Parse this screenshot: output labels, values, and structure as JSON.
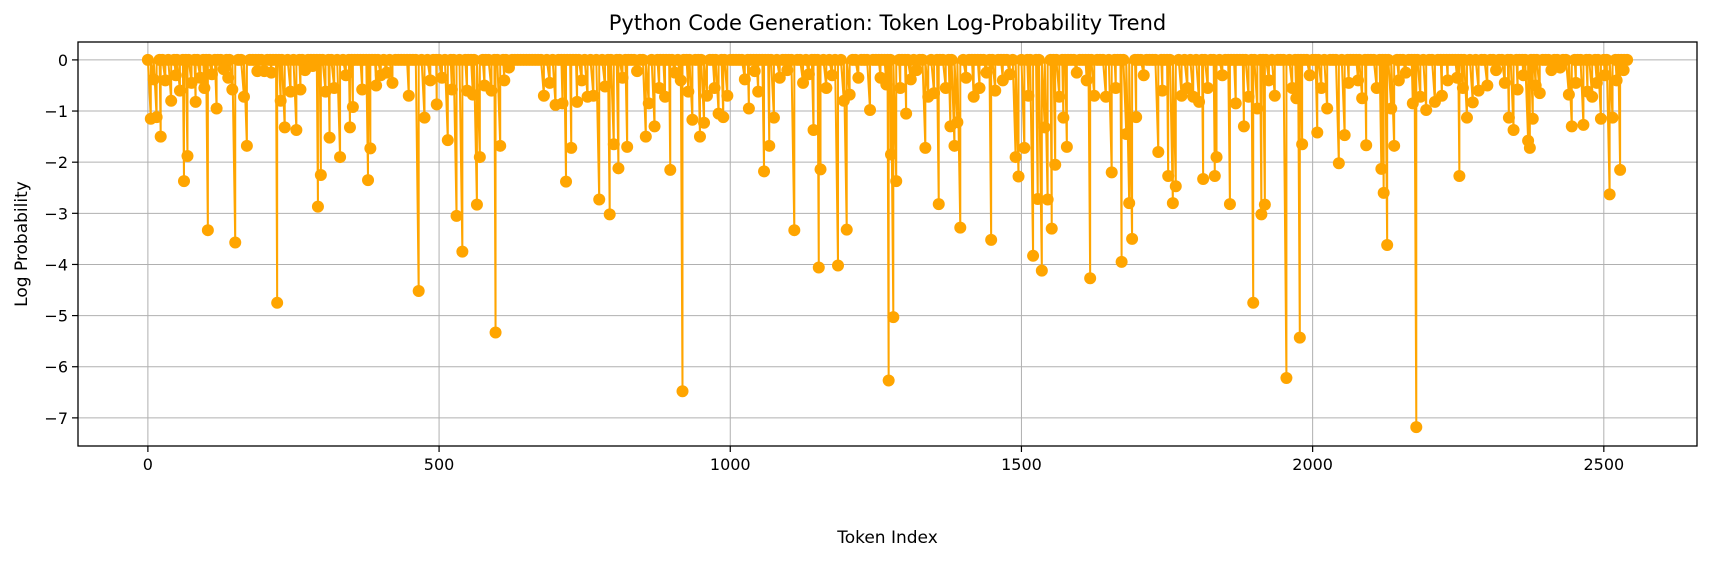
{
  "chart_data": {
    "type": "line",
    "title": "Python Code Generation: Token Log-Probability Trend",
    "xlabel": "Token Index",
    "ylabel": "Log Probability",
    "xlim": [
      -120,
      2660
    ],
    "ylim": [
      -7.55,
      0.35
    ],
    "xticks": [
      0,
      500,
      1000,
      1500,
      2000,
      2500
    ],
    "yticks": [
      0,
      -1,
      -2,
      -3,
      -4,
      -5,
      -6,
      -7
    ],
    "grid": true,
    "color": "#FFA500",
    "marker": "circle",
    "n_tokens": 2540,
    "baseline": 0,
    "dips": [
      [
        5,
        -1.15
      ],
      [
        10,
        -0.38
      ],
      [
        15,
        -1.12
      ],
      [
        22,
        -1.5
      ],
      [
        30,
        -0.4
      ],
      [
        40,
        -0.8
      ],
      [
        48,
        -0.3
      ],
      [
        55,
        -0.6
      ],
      [
        62,
        -2.37
      ],
      [
        68,
        -1.88
      ],
      [
        75,
        -0.45
      ],
      [
        82,
        -0.82
      ],
      [
        90,
        -0.35
      ],
      [
        97,
        -0.55
      ],
      [
        103,
        -3.33
      ],
      [
        110,
        -0.28
      ],
      [
        118,
        -0.95
      ],
      [
        130,
        -0.18
      ],
      [
        138,
        -0.35
      ],
      [
        145,
        -0.58
      ],
      [
        150,
        -3.57
      ],
      [
        165,
        -0.72
      ],
      [
        170,
        -1.68
      ],
      [
        188,
        -0.22
      ],
      [
        200,
        -0.22
      ],
      [
        212,
        -0.25
      ],
      [
        222,
        -4.75
      ],
      [
        228,
        -0.8
      ],
      [
        235,
        -1.32
      ],
      [
        245,
        -0.62
      ],
      [
        255,
        -1.37
      ],
      [
        262,
        -0.58
      ],
      [
        270,
        -0.2
      ],
      [
        283,
        -0.12
      ],
      [
        292,
        -2.87
      ],
      [
        297,
        -2.25
      ],
      [
        305,
        -0.62
      ],
      [
        312,
        -1.52
      ],
      [
        320,
        -0.55
      ],
      [
        330,
        -1.9
      ],
      [
        340,
        -0.3
      ],
      [
        347,
        -1.32
      ],
      [
        352,
        -0.92
      ],
      [
        368,
        -0.58
      ],
      [
        378,
        -2.35
      ],
      [
        382,
        -1.73
      ],
      [
        392,
        -0.5
      ],
      [
        400,
        -0.3
      ],
      [
        410,
        -0.25
      ],
      [
        420,
        -0.45
      ],
      [
        448,
        -0.7
      ],
      [
        465,
        -4.52
      ],
      [
        475,
        -1.13
      ],
      [
        485,
        -0.4
      ],
      [
        496,
        -0.87
      ],
      [
        505,
        -0.35
      ],
      [
        515,
        -1.57
      ],
      [
        522,
        -0.58
      ],
      [
        530,
        -3.05
      ],
      [
        540,
        -3.75
      ],
      [
        548,
        -0.6
      ],
      [
        558,
        -0.68
      ],
      [
        565,
        -2.83
      ],
      [
        570,
        -1.9
      ],
      [
        578,
        -0.5
      ],
      [
        590,
        -0.6
      ],
      [
        597,
        -5.33
      ],
      [
        605,
        -1.68
      ],
      [
        612,
        -0.4
      ],
      [
        620,
        -0.15
      ],
      [
        680,
        -0.7
      ],
      [
        690,
        -0.45
      ],
      [
        700,
        -0.88
      ],
      [
        712,
        -0.85
      ],
      [
        718,
        -2.38
      ],
      [
        727,
        -1.72
      ],
      [
        737,
        -0.82
      ],
      [
        745,
        -0.4
      ],
      [
        755,
        -0.72
      ],
      [
        765,
        -0.7
      ],
      [
        775,
        -2.73
      ],
      [
        785,
        -0.52
      ],
      [
        793,
        -3.02
      ],
      [
        800,
        -1.65
      ],
      [
        808,
        -2.12
      ],
      [
        815,
        -0.35
      ],
      [
        823,
        -1.7
      ],
      [
        840,
        -0.22
      ],
      [
        855,
        -1.5
      ],
      [
        860,
        -0.85
      ],
      [
        870,
        -1.3
      ],
      [
        878,
        -0.55
      ],
      [
        888,
        -0.72
      ],
      [
        897,
        -2.15
      ],
      [
        905,
        -0.25
      ],
      [
        915,
        -0.4
      ],
      [
        918,
        -6.48
      ],
      [
        928,
        -0.62
      ],
      [
        935,
        -1.17
      ],
      [
        948,
        -1.5
      ],
      [
        955,
        -1.23
      ],
      [
        960,
        -0.7
      ],
      [
        973,
        -0.55
      ],
      [
        980,
        -1.05
      ],
      [
        988,
        -1.12
      ],
      [
        995,
        -0.7
      ],
      [
        1025,
        -0.38
      ],
      [
        1032,
        -0.95
      ],
      [
        1042,
        -0.22
      ],
      [
        1048,
        -0.62
      ],
      [
        1058,
        -2.18
      ],
      [
        1067,
        -1.68
      ],
      [
        1075,
        -1.13
      ],
      [
        1085,
        -0.35
      ],
      [
        1098,
        -0.2
      ],
      [
        1110,
        -3.33
      ],
      [
        1125,
        -0.45
      ],
      [
        1135,
        -0.28
      ],
      [
        1143,
        -1.37
      ],
      [
        1152,
        -4.06
      ],
      [
        1155,
        -2.14
      ],
      [
        1165,
        -0.55
      ],
      [
        1175,
        -0.3
      ],
      [
        1185,
        -4.02
      ],
      [
        1195,
        -0.8
      ],
      [
        1200,
        -3.32
      ],
      [
        1205,
        -0.68
      ],
      [
        1220,
        -0.35
      ],
      [
        1240,
        -0.98
      ],
      [
        1258,
        -0.35
      ],
      [
        1268,
        -0.48
      ],
      [
        1272,
        -6.27
      ],
      [
        1276,
        -1.85
      ],
      [
        1280,
        -5.03
      ],
      [
        1285,
        -2.37
      ],
      [
        1292,
        -0.55
      ],
      [
        1302,
        -1.05
      ],
      [
        1310,
        -0.38
      ],
      [
        1320,
        -0.2
      ],
      [
        1335,
        -1.72
      ],
      [
        1340,
        -0.72
      ],
      [
        1350,
        -0.65
      ],
      [
        1358,
        -2.82
      ],
      [
        1370,
        -0.55
      ],
      [
        1378,
        -1.3
      ],
      [
        1385,
        -1.68
      ],
      [
        1390,
        -1.22
      ],
      [
        1395,
        -3.28
      ],
      [
        1405,
        -0.35
      ],
      [
        1418,
        -0.72
      ],
      [
        1428,
        -0.55
      ],
      [
        1440,
        -0.25
      ],
      [
        1448,
        -3.52
      ],
      [
        1455,
        -0.6
      ],
      [
        1468,
        -0.4
      ],
      [
        1480,
        -0.28
      ],
      [
        1490,
        -1.9
      ],
      [
        1495,
        -2.28
      ],
      [
        1505,
        -1.72
      ],
      [
        1512,
        -0.7
      ],
      [
        1520,
        -3.83
      ],
      [
        1528,
        -2.72
      ],
      [
        1535,
        -4.12
      ],
      [
        1540,
        -1.32
      ],
      [
        1545,
        -2.73
      ],
      [
        1552,
        -3.3
      ],
      [
        1558,
        -2.05
      ],
      [
        1565,
        -0.72
      ],
      [
        1572,
        -1.13
      ],
      [
        1578,
        -1.7
      ],
      [
        1595,
        -0.25
      ],
      [
        1612,
        -0.4
      ],
      [
        1618,
        -4.27
      ],
      [
        1625,
        -0.7
      ],
      [
        1645,
        -0.72
      ],
      [
        1655,
        -2.2
      ],
      [
        1662,
        -0.55
      ],
      [
        1672,
        -3.95
      ],
      [
        1680,
        -1.45
      ],
      [
        1685,
        -2.8
      ],
      [
        1690,
        -3.5
      ],
      [
        1697,
        -1.12
      ],
      [
        1710,
        -0.3
      ],
      [
        1735,
        -1.8
      ],
      [
        1742,
        -0.6
      ],
      [
        1752,
        -2.27
      ],
      [
        1760,
        -2.8
      ],
      [
        1765,
        -2.47
      ],
      [
        1775,
        -0.7
      ],
      [
        1785,
        -0.55
      ],
      [
        1795,
        -0.72
      ],
      [
        1805,
        -0.82
      ],
      [
        1812,
        -2.33
      ],
      [
        1820,
        -0.55
      ],
      [
        1832,
        -2.27
      ],
      [
        1835,
        -1.9
      ],
      [
        1845,
        -0.3
      ],
      [
        1858,
        -2.82
      ],
      [
        1868,
        -0.85
      ],
      [
        1882,
        -1.3
      ],
      [
        1890,
        -0.72
      ],
      [
        1898,
        -4.75
      ],
      [
        1905,
        -0.95
      ],
      [
        1912,
        -3.02
      ],
      [
        1918,
        -2.83
      ],
      [
        1925,
        -0.4
      ],
      [
        1935,
        -0.7
      ],
      [
        1955,
        -6.22
      ],
      [
        1965,
        -0.55
      ],
      [
        1972,
        -0.75
      ],
      [
        1978,
        -5.43
      ],
      [
        1982,
        -1.65
      ],
      [
        1995,
        -0.3
      ],
      [
        2008,
        -1.42
      ],
      [
        2015,
        -0.55
      ],
      [
        2025,
        -0.95
      ],
      [
        2045,
        -2.02
      ],
      [
        2055,
        -1.47
      ],
      [
        2062,
        -0.45
      ],
      [
        2078,
        -0.4
      ],
      [
        2085,
        -0.75
      ],
      [
        2092,
        -1.67
      ],
      [
        2110,
        -0.55
      ],
      [
        2118,
        -2.13
      ],
      [
        2122,
        -2.6
      ],
      [
        2128,
        -3.62
      ],
      [
        2135,
        -0.95
      ],
      [
        2140,
        -1.68
      ],
      [
        2148,
        -0.4
      ],
      [
        2160,
        -0.25
      ],
      [
        2172,
        -0.85
      ],
      [
        2178,
        -7.18
      ],
      [
        2185,
        -0.72
      ],
      [
        2195,
        -0.98
      ],
      [
        2210,
        -0.82
      ],
      [
        2222,
        -0.7
      ],
      [
        2232,
        -0.4
      ],
      [
        2248,
        -0.35
      ],
      [
        2252,
        -2.27
      ],
      [
        2258,
        -0.55
      ],
      [
        2265,
        -1.13
      ],
      [
        2275,
        -0.83
      ],
      [
        2285,
        -0.6
      ],
      [
        2300,
        -0.5
      ],
      [
        2315,
        -0.2
      ],
      [
        2330,
        -0.45
      ],
      [
        2337,
        -1.13
      ],
      [
        2345,
        -1.37
      ],
      [
        2352,
        -0.58
      ],
      [
        2362,
        -0.3
      ],
      [
        2370,
        -1.58
      ],
      [
        2373,
        -1.72
      ],
      [
        2378,
        -1.15
      ],
      [
        2383,
        -0.5
      ],
      [
        2390,
        -0.65
      ],
      [
        2410,
        -0.2
      ],
      [
        2425,
        -0.15
      ],
      [
        2440,
        -0.68
      ],
      [
        2445,
        -1.3
      ],
      [
        2452,
        -0.45
      ],
      [
        2465,
        -1.27
      ],
      [
        2472,
        -0.62
      ],
      [
        2480,
        -0.72
      ],
      [
        2488,
        -0.45
      ],
      [
        2495,
        -1.15
      ],
      [
        2502,
        -0.3
      ],
      [
        2510,
        -2.63
      ],
      [
        2515,
        -1.13
      ],
      [
        2522,
        -0.4
      ],
      [
        2528,
        -2.15
      ],
      [
        2534,
        -0.2
      ]
    ]
  }
}
